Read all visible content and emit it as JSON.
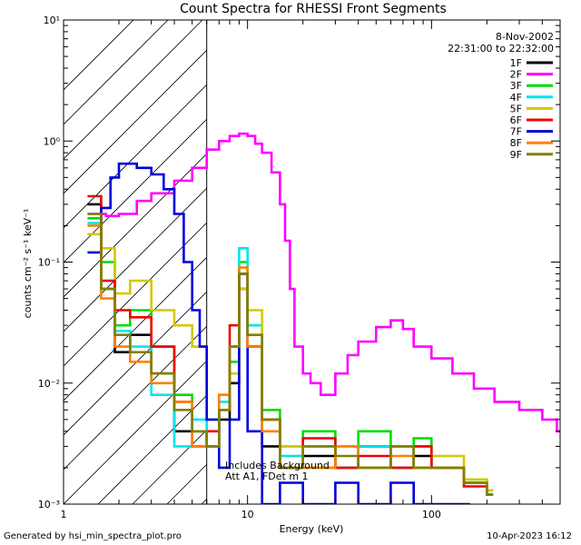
{
  "chart_data": {
    "type": "line",
    "title": "Count Spectra for RHESSI Front Segments",
    "xlabel": "Energy (keV)",
    "ylabel": "counts cm⁻² s⁻¹ keV⁻¹",
    "xscale": "log",
    "yscale": "log",
    "xlim": [
      1,
      500
    ],
    "ylim": [
      0.001,
      10
    ],
    "x_ticks": [
      {
        "value": 1,
        "label": "1"
      },
      {
        "value": 10,
        "label": "10"
      },
      {
        "value": 100,
        "label": "100"
      }
    ],
    "y_ticks": [
      {
        "value": 10,
        "label": "10¹"
      },
      {
        "value": 1,
        "label": "10⁰"
      },
      {
        "value": 0.1,
        "label": "10⁻¹"
      },
      {
        "value": 0.01,
        "label": "10⁻²"
      },
      {
        "value": 0.001,
        "label": "10⁻³"
      }
    ],
    "hatched_region_max_keV": 6,
    "date": "8-Nov-2002",
    "time_range": "22:31:00 to 22:32:00",
    "annotations": [
      "Includes Background",
      "Att A1, FDet m 1"
    ],
    "legend_position": "top-right",
    "series": [
      {
        "name": "1F",
        "color": "#000000",
        "points": [
          [
            1.35,
            0.3
          ],
          [
            1.6,
            0.06
          ],
          [
            1.9,
            0.018
          ],
          [
            2.3,
            0.025
          ],
          [
            3,
            0.012
          ],
          [
            4,
            0.004
          ],
          [
            5,
            0.004
          ],
          [
            6,
            0.003
          ],
          [
            7,
            0.005
          ],
          [
            8,
            0.01
          ],
          [
            9,
            0.06
          ],
          [
            10,
            0.02
          ],
          [
            12,
            0.003
          ],
          [
            15,
            0.002
          ],
          [
            20,
            0.0025
          ],
          [
            30,
            0.002
          ],
          [
            40,
            0.003
          ],
          [
            60,
            0.002
          ],
          [
            80,
            0.0025
          ],
          [
            100,
            0.002
          ],
          [
            150,
            0.0015
          ],
          [
            200,
            0.0012
          ]
        ]
      },
      {
        "name": "2F",
        "color": "#ff00ff",
        "points": [
          [
            1.35,
            0.25
          ],
          [
            1.7,
            0.24
          ],
          [
            2,
            0.25
          ],
          [
            2.5,
            0.32
          ],
          [
            3,
            0.37
          ],
          [
            4,
            0.47
          ],
          [
            5,
            0.6
          ],
          [
            6,
            0.85
          ],
          [
            7,
            1.0
          ],
          [
            8,
            1.1
          ],
          [
            9,
            1.15
          ],
          [
            10,
            1.1
          ],
          [
            11,
            0.95
          ],
          [
            12,
            0.8
          ],
          [
            13.5,
            0.55
          ],
          [
            15,
            0.3
          ],
          [
            16,
            0.15
          ],
          [
            17,
            0.06
          ],
          [
            18,
            0.02
          ],
          [
            20,
            0.012
          ],
          [
            22,
            0.01
          ],
          [
            25,
            0.008
          ],
          [
            30,
            0.012
          ],
          [
            35,
            0.017
          ],
          [
            40,
            0.022
          ],
          [
            50,
            0.029
          ],
          [
            60,
            0.033
          ],
          [
            70,
            0.028
          ],
          [
            80,
            0.02
          ],
          [
            100,
            0.016
          ],
          [
            130,
            0.012
          ],
          [
            170,
            0.009
          ],
          [
            220,
            0.007
          ],
          [
            300,
            0.006
          ],
          [
            400,
            0.005
          ],
          [
            480,
            0.004
          ]
        ]
      },
      {
        "name": "3F",
        "color": "#00dd00",
        "points": [
          [
            1.35,
            0.23
          ],
          [
            1.6,
            0.1
          ],
          [
            1.9,
            0.03
          ],
          [
            2.3,
            0.04
          ],
          [
            3,
            0.02
          ],
          [
            4,
            0.008
          ],
          [
            5,
            0.004
          ],
          [
            6,
            0.003
          ],
          [
            7,
            0.006
          ],
          [
            8,
            0.015
          ],
          [
            9,
            0.1
          ],
          [
            10,
            0.03
          ],
          [
            12,
            0.006
          ],
          [
            15,
            0.003
          ],
          [
            20,
            0.004
          ],
          [
            30,
            0.002
          ],
          [
            40,
            0.004
          ],
          [
            60,
            0.003
          ],
          [
            80,
            0.0035
          ],
          [
            100,
            0.002
          ],
          [
            150,
            0.0016
          ],
          [
            200,
            0.0013
          ]
        ]
      },
      {
        "name": "4F",
        "color": "#00e5ee",
        "points": [
          [
            1.35,
            0.21
          ],
          [
            1.6,
            0.06
          ],
          [
            1.9,
            0.027
          ],
          [
            2.3,
            0.02
          ],
          [
            3,
            0.008
          ],
          [
            4,
            0.003
          ],
          [
            5,
            0.005
          ],
          [
            6,
            0.003
          ],
          [
            7,
            0.007
          ],
          [
            8,
            0.02
          ],
          [
            9,
            0.13
          ],
          [
            10,
            0.03
          ],
          [
            12,
            0.004
          ],
          [
            15,
            0.0025
          ],
          [
            20,
            0.003
          ],
          [
            30,
            0.002
          ],
          [
            40,
            0.003
          ],
          [
            60,
            0.002
          ],
          [
            80,
            0.003
          ],
          [
            100,
            0.002
          ],
          [
            150,
            0.0015
          ],
          [
            200,
            0.0012
          ]
        ]
      },
      {
        "name": "5F",
        "color": "#d4c800",
        "points": [
          [
            1.35,
            0.17
          ],
          [
            1.6,
            0.13
          ],
          [
            1.9,
            0.055
          ],
          [
            2.3,
            0.07
          ],
          [
            3,
            0.04
          ],
          [
            4,
            0.03
          ],
          [
            5,
            0.02
          ],
          [
            6,
            0.005
          ],
          [
            7,
            0.008
          ],
          [
            8,
            0.012
          ],
          [
            9,
            0.06
          ],
          [
            10,
            0.04
          ],
          [
            12,
            0.005
          ],
          [
            15,
            0.003
          ],
          [
            20,
            0.002
          ],
          [
            30,
            0.003
          ],
          [
            40,
            0.002
          ],
          [
            60,
            0.003
          ],
          [
            80,
            0.002
          ],
          [
            100,
            0.0025
          ],
          [
            150,
            0.0016
          ],
          [
            200,
            0.0013
          ]
        ]
      },
      {
        "name": "6F",
        "color": "#ee0000",
        "points": [
          [
            1.35,
            0.35
          ],
          [
            1.6,
            0.07
          ],
          [
            1.9,
            0.04
          ],
          [
            2.3,
            0.035
          ],
          [
            3,
            0.02
          ],
          [
            4,
            0.007
          ],
          [
            5,
            0.003
          ],
          [
            6,
            0.004
          ],
          [
            7,
            0.006
          ],
          [
            8,
            0.03
          ],
          [
            9,
            0.08
          ],
          [
            10,
            0.02
          ],
          [
            12,
            0.005
          ],
          [
            15,
            0.002
          ],
          [
            20,
            0.0035
          ],
          [
            30,
            0.002
          ],
          [
            40,
            0.0025
          ],
          [
            60,
            0.002
          ],
          [
            80,
            0.003
          ],
          [
            100,
            0.002
          ],
          [
            150,
            0.0014
          ],
          [
            200,
            0.0012
          ]
        ]
      },
      {
        "name": "7F",
        "color": "#0000dd",
        "points": [
          [
            1.35,
            0.12
          ],
          [
            1.6,
            0.28
          ],
          [
            1.8,
            0.5
          ],
          [
            2,
            0.65
          ],
          [
            2.5,
            0.6
          ],
          [
            3,
            0.53
          ],
          [
            3.5,
            0.4
          ],
          [
            4,
            0.25
          ],
          [
            4.5,
            0.1
          ],
          [
            5,
            0.04
          ],
          [
            5.5,
            0.02
          ],
          [
            6,
            0.005
          ],
          [
            7,
            0.002
          ],
          [
            8,
            0.005
          ],
          [
            9,
            0.08
          ],
          [
            10,
            0.004
          ],
          [
            12,
            0.001
          ],
          [
            15,
            0.0015
          ],
          [
            20,
            0.001
          ],
          [
            30,
            0.0015
          ],
          [
            40,
            0.001
          ],
          [
            60,
            0.0015
          ],
          [
            80,
            0.001
          ],
          [
            100,
            0.001
          ],
          [
            150,
            0.001
          ]
        ]
      },
      {
        "name": "8F",
        "color": "#ff8000",
        "points": [
          [
            1.35,
            0.2
          ],
          [
            1.6,
            0.05
          ],
          [
            1.9,
            0.02
          ],
          [
            2.3,
            0.015
          ],
          [
            3,
            0.01
          ],
          [
            4,
            0.007
          ],
          [
            5,
            0.003
          ],
          [
            6,
            0.003
          ],
          [
            7,
            0.008
          ],
          [
            8,
            0.02
          ],
          [
            9,
            0.09
          ],
          [
            10,
            0.02
          ],
          [
            12,
            0.004
          ],
          [
            15,
            0.002
          ],
          [
            20,
            0.002
          ],
          [
            30,
            0.003
          ],
          [
            40,
            0.002
          ],
          [
            60,
            0.0025
          ],
          [
            80,
            0.002
          ],
          [
            100,
            0.002
          ],
          [
            150,
            0.0015
          ],
          [
            200,
            0.0012
          ]
        ]
      },
      {
        "name": "9F",
        "color": "#808000",
        "points": [
          [
            1.35,
            0.25
          ],
          [
            1.6,
            0.06
          ],
          [
            1.9,
            0.025
          ],
          [
            2.3,
            0.018
          ],
          [
            3,
            0.012
          ],
          [
            4,
            0.006
          ],
          [
            5,
            0.004
          ],
          [
            6,
            0.003
          ],
          [
            7,
            0.006
          ],
          [
            8,
            0.02
          ],
          [
            9,
            0.08
          ],
          [
            10,
            0.025
          ],
          [
            12,
            0.005
          ],
          [
            15,
            0.002
          ],
          [
            20,
            0.003
          ],
          [
            30,
            0.0025
          ],
          [
            40,
            0.002
          ],
          [
            60,
            0.003
          ],
          [
            80,
            0.002
          ],
          [
            100,
            0.002
          ],
          [
            150,
            0.0015
          ],
          [
            200,
            0.0012
          ]
        ]
      }
    ]
  },
  "footer": {
    "left": "Generated by hsi_min_spectra_plot.pro",
    "right": "10-Apr-2023 16:12"
  }
}
